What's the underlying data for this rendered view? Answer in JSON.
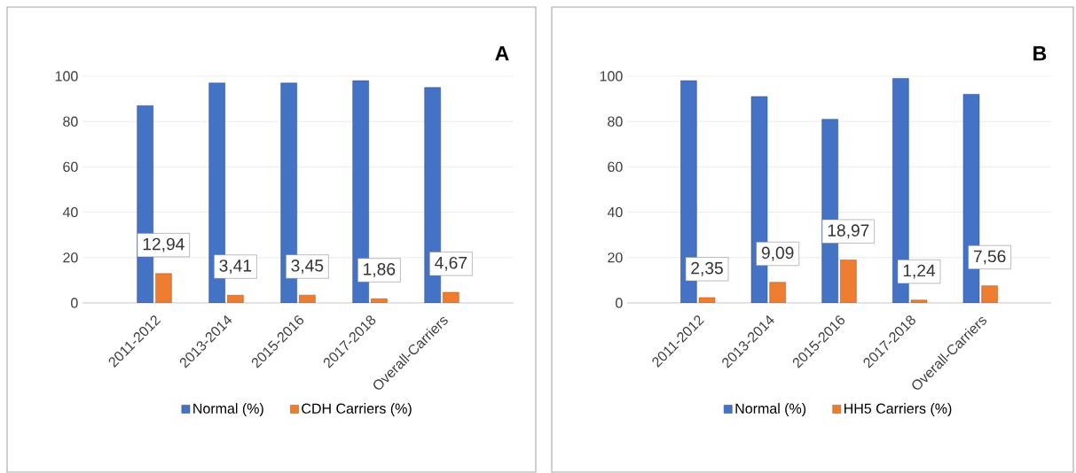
{
  "chart_data": [
    {
      "type": "bar",
      "title": "A",
      "categories": [
        "2011-2012",
        "2013-2014",
        "2015-2016",
        "2017-2018",
        "Overall-Carriers"
      ],
      "ylim": [
        0,
        100
      ],
      "yticks": [
        0,
        20,
        40,
        60,
        80,
        100
      ],
      "grid": "y",
      "legend": "bottom",
      "series": [
        {
          "name": "Normal (%)",
          "color": "#4472c4",
          "values": [
            87,
            97,
            97,
            98,
            95
          ]
        },
        {
          "name": "CDH Carriers (%)",
          "color": "#ed7d31",
          "values": [
            12.94,
            3.41,
            3.45,
            1.86,
            4.67
          ],
          "value_labels": [
            "12,94",
            "3,41",
            "3,45",
            "1,86",
            "4,67"
          ]
        }
      ]
    },
    {
      "type": "bar",
      "title": "B",
      "categories": [
        "2011-2012",
        "2013-2014",
        "2015-2016",
        "2017-2018",
        "Overall-Carriers"
      ],
      "ylim": [
        0,
        100
      ],
      "yticks": [
        0,
        20,
        40,
        60,
        80,
        100
      ],
      "grid": "y",
      "legend": "bottom",
      "series": [
        {
          "name": "Normal (%)",
          "color": "#4472c4",
          "values": [
            98,
            91,
            81,
            99,
            92
          ]
        },
        {
          "name": "HH5 Carriers (%)",
          "color": "#ed7d31",
          "values": [
            2.35,
            9.09,
            18.97,
            1.24,
            7.56
          ],
          "value_labels": [
            "2,35",
            "9,09",
            "18,97",
            "1,24",
            "7,56"
          ]
        }
      ]
    }
  ]
}
